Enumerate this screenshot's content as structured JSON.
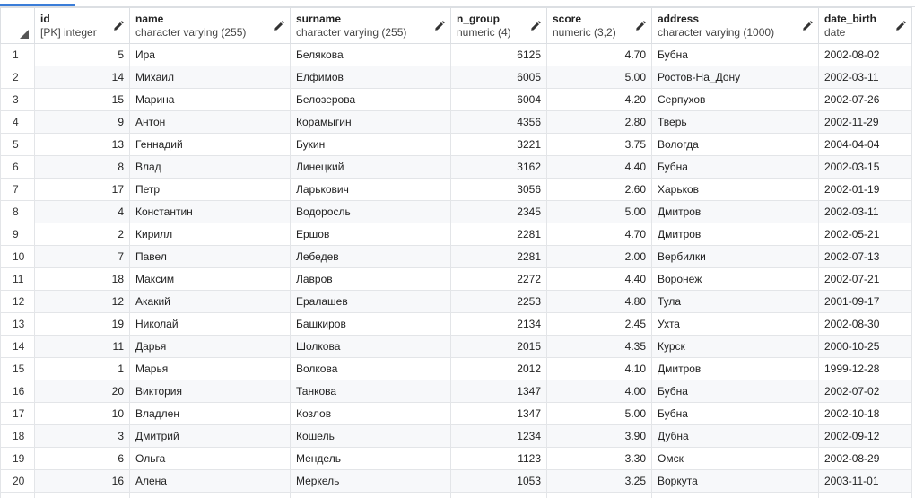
{
  "columns": [
    {
      "name": "id",
      "type": "[PK] integer"
    },
    {
      "name": "name",
      "type": "character varying (255)"
    },
    {
      "name": "surname",
      "type": "character varying (255)"
    },
    {
      "name": "n_group",
      "type": "numeric (4)"
    },
    {
      "name": "score",
      "type": "numeric (3,2)"
    },
    {
      "name": "address",
      "type": "character varying (1000)"
    },
    {
      "name": "date_birth",
      "type": "date"
    }
  ],
  "rows": [
    {
      "n": "1",
      "id": "5",
      "name": "Ира",
      "surname": "Белякова",
      "n_group": "6125",
      "score": "4.70",
      "address": "Бубна",
      "date_birth": "2002-08-02"
    },
    {
      "n": "2",
      "id": "14",
      "name": "Михаил",
      "surname": "Елфимов",
      "n_group": "6005",
      "score": "5.00",
      "address": "Ростов-На_Дону",
      "date_birth": "2002-03-11"
    },
    {
      "n": "3",
      "id": "15",
      "name": "Марина",
      "surname": "Белозерова",
      "n_group": "6004",
      "score": "4.20",
      "address": "Серпухов",
      "date_birth": "2002-07-26"
    },
    {
      "n": "4",
      "id": "9",
      "name": "Антон",
      "surname": "Корамыгин",
      "n_group": "4356",
      "score": "2.80",
      "address": "Тверь",
      "date_birth": "2002-11-29"
    },
    {
      "n": "5",
      "id": "13",
      "name": "Геннадий",
      "surname": "Букин",
      "n_group": "3221",
      "score": "3.75",
      "address": "Вологда",
      "date_birth": "2004-04-04"
    },
    {
      "n": "6",
      "id": "8",
      "name": "Влад",
      "surname": "Линецкий",
      "n_group": "3162",
      "score": "4.40",
      "address": "Бубна",
      "date_birth": "2002-03-15"
    },
    {
      "n": "7",
      "id": "17",
      "name": "Петр",
      "surname": "Ларькович",
      "n_group": "3056",
      "score": "2.60",
      "address": "Харьков",
      "date_birth": "2002-01-19"
    },
    {
      "n": "8",
      "id": "4",
      "name": "Константин",
      "surname": "Водоросль",
      "n_group": "2345",
      "score": "5.00",
      "address": "Дмитров",
      "date_birth": "2002-03-11"
    },
    {
      "n": "9",
      "id": "2",
      "name": "Кирилл",
      "surname": "Ершов",
      "n_group": "2281",
      "score": "4.70",
      "address": "Дмитров",
      "date_birth": "2002-05-21"
    },
    {
      "n": "10",
      "id": "7",
      "name": "Павел",
      "surname": "Лебедев",
      "n_group": "2281",
      "score": "2.00",
      "address": "Вербилки",
      "date_birth": "2002-07-13"
    },
    {
      "n": "11",
      "id": "18",
      "name": "Максим",
      "surname": "Лавров",
      "n_group": "2272",
      "score": "4.40",
      "address": "Воронеж",
      "date_birth": "2002-07-21"
    },
    {
      "n": "12",
      "id": "12",
      "name": "Акакий",
      "surname": "Ералашев",
      "n_group": "2253",
      "score": "4.80",
      "address": "Тула",
      "date_birth": "2001-09-17"
    },
    {
      "n": "13",
      "id": "19",
      "name": "Николай",
      "surname": "Башкиров",
      "n_group": "2134",
      "score": "2.45",
      "address": "Ухта",
      "date_birth": "2002-08-30"
    },
    {
      "n": "14",
      "id": "11",
      "name": "Дарья",
      "surname": "Шолкова",
      "n_group": "2015",
      "score": "4.35",
      "address": "Курск",
      "date_birth": "2000-10-25"
    },
    {
      "n": "15",
      "id": "1",
      "name": "Марья",
      "surname": "Волкова",
      "n_group": "2012",
      "score": "4.10",
      "address": "Дмитров",
      "date_birth": "1999-12-28"
    },
    {
      "n": "16",
      "id": "20",
      "name": "Виктория",
      "surname": "Танкова",
      "n_group": "1347",
      "score": "4.00",
      "address": "Бубна",
      "date_birth": "2002-07-02"
    },
    {
      "n": "17",
      "id": "10",
      "name": "Владлен",
      "surname": "Козлов",
      "n_group": "1347",
      "score": "5.00",
      "address": "Бубна",
      "date_birth": "2002-10-18"
    },
    {
      "n": "18",
      "id": "3",
      "name": "Дмитрий",
      "surname": "Кошель",
      "n_group": "1234",
      "score": "3.90",
      "address": "Дубна",
      "date_birth": "2002-09-12"
    },
    {
      "n": "19",
      "id": "6",
      "name": "Ольга",
      "surname": "Мендель",
      "n_group": "1123",
      "score": "3.30",
      "address": "Омск",
      "date_birth": "2002-08-29"
    },
    {
      "n": "20",
      "id": "16",
      "name": "Алена",
      "surname": "Меркель",
      "n_group": "1053",
      "score": "3.25",
      "address": "Воркута",
      "date_birth": "2003-11-01"
    }
  ],
  "icons": {
    "column_edit": "pencil-icon",
    "select_all": "corner-triangle-icon"
  },
  "colors": {
    "accent": "#3b7dd8",
    "grid_line": "#e3e5e8",
    "stripe": "#f7f8fa"
  }
}
